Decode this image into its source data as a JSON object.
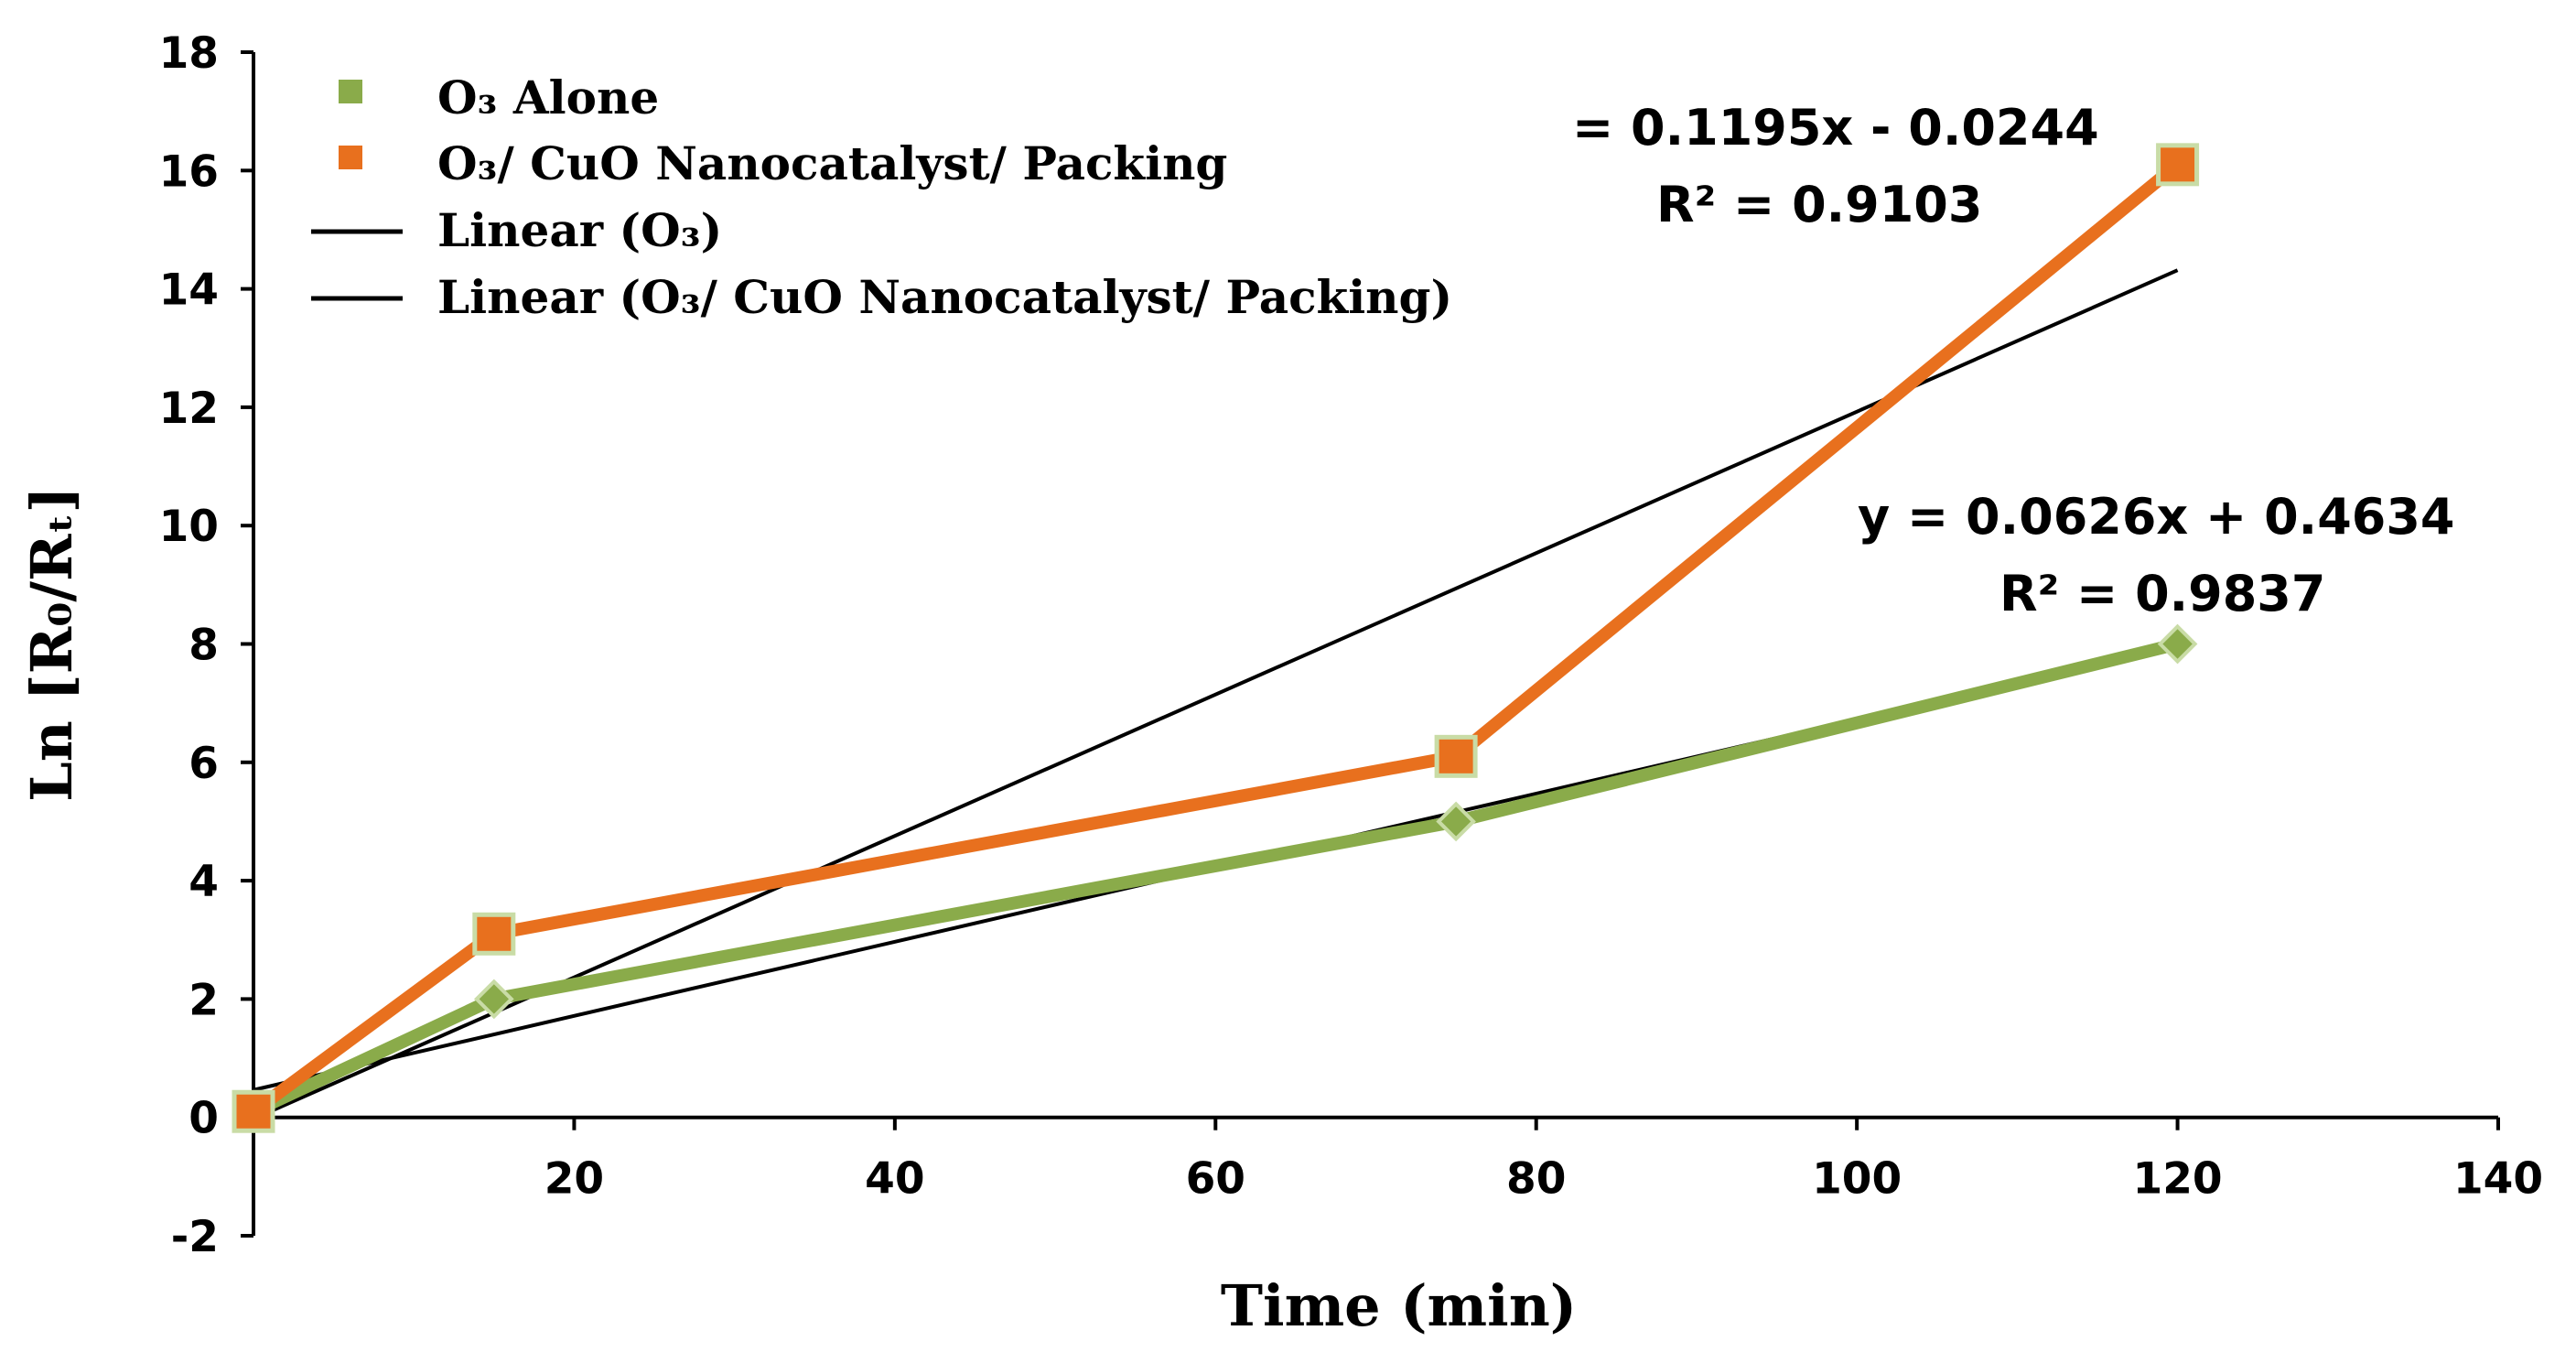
{
  "chart_data": {
    "type": "line",
    "title": "",
    "xlabel": "Time (min)",
    "ylabel": "Ln [R₀/Rₜ]",
    "xlim": [
      0,
      140
    ],
    "ylim": [
      -2,
      18
    ],
    "x_ticks": [
      20,
      40,
      60,
      80,
      100,
      120,
      140
    ],
    "y_ticks": [
      -2,
      0,
      2,
      4,
      6,
      8,
      10,
      12,
      14,
      16,
      18
    ],
    "grid": false,
    "legend_position": "top-left",
    "series": [
      {
        "name": "O₃ Alone",
        "color": "#8aab4a",
        "marker": "diamond",
        "x": [
          0,
          15,
          75,
          120
        ],
        "y": [
          0.1,
          2.0,
          5.0,
          8.0
        ]
      },
      {
        "name": "O₃/ CuO Nanocatalyst/ Packing",
        "color": "#e8701e",
        "marker": "square",
        "x": [
          0,
          15,
          75,
          120
        ],
        "y": [
          0.1,
          3.1,
          6.1,
          16.1
        ]
      }
    ],
    "trendlines": [
      {
        "name": "Linear (O₃)",
        "color": "#000000",
        "slope": 0.0626,
        "intercept": 0.4634,
        "x_range": [
          0,
          120
        ],
        "equation": "y = 0.0626x + 0.4634",
        "r2": "R² = 0.9837"
      },
      {
        "name": "Linear (O₃/ CuO Nanocatalyst/ Packing)",
        "color": "#000000",
        "slope": 0.1195,
        "intercept": -0.0244,
        "x_range": [
          0,
          120
        ],
        "equation": "= 0.1195x - 0.0244",
        "r2": "R² = 0.9103"
      }
    ]
  }
}
